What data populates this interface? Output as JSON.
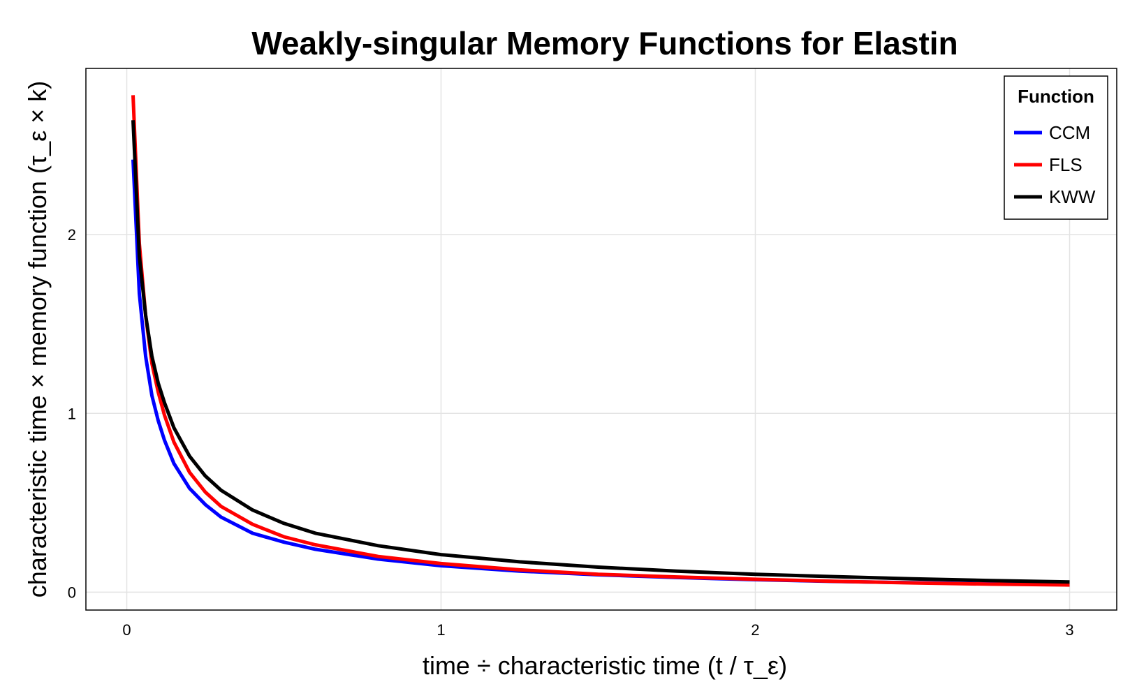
{
  "chart_data": {
    "type": "line",
    "title": "Weakly-singular Memory Functions for Elastin",
    "xlabel": "time ÷ characteristic time  (t / τ_ε)",
    "ylabel": "characteristic time × memory function  (τ_ε × k)",
    "xlim": [
      -0.13,
      3.15
    ],
    "ylim": [
      -0.1,
      2.93
    ],
    "xticks": [
      0,
      1,
      2,
      3
    ],
    "xtick_labels": [
      "0",
      "1",
      "2",
      "3"
    ],
    "yticks": [
      0,
      1,
      2
    ],
    "ytick_labels": [
      "0",
      "1",
      "2"
    ],
    "grid": true,
    "legend": {
      "title": "Function",
      "position": "top-right"
    },
    "series": [
      {
        "name": "CCM",
        "color": "#0000ff",
        "x": [
          0.02,
          0.04,
          0.06,
          0.08,
          0.1,
          0.12,
          0.15,
          0.2,
          0.25,
          0.3,
          0.4,
          0.5,
          0.6,
          0.8,
          1.0,
          1.25,
          1.5,
          1.75,
          2.0,
          2.25,
          2.5,
          2.75,
          3.0
        ],
        "y": [
          2.42,
          1.67,
          1.32,
          1.1,
          0.96,
          0.85,
          0.72,
          0.58,
          0.49,
          0.42,
          0.33,
          0.28,
          0.24,
          0.185,
          0.148,
          0.118,
          0.097,
          0.082,
          0.07,
          0.06,
          0.053,
          0.047,
          0.042
        ]
      },
      {
        "name": "FLS",
        "color": "#ff0000",
        "x": [
          0.02,
          0.04,
          0.06,
          0.08,
          0.1,
          0.12,
          0.15,
          0.2,
          0.25,
          0.3,
          0.4,
          0.5,
          0.6,
          0.8,
          1.0,
          1.25,
          1.5,
          1.75,
          2.0,
          2.25,
          2.5,
          2.75,
          3.0
        ],
        "y": [
          2.78,
          1.95,
          1.55,
          1.28,
          1.12,
          0.99,
          0.84,
          0.67,
          0.56,
          0.48,
          0.38,
          0.31,
          0.265,
          0.2,
          0.16,
          0.125,
          0.1,
          0.085,
          0.072,
          0.061,
          0.052,
          0.045,
          0.04
        ]
      },
      {
        "name": "KWW",
        "color": "#000000",
        "x": [
          0.02,
          0.04,
          0.06,
          0.08,
          0.1,
          0.12,
          0.15,
          0.2,
          0.25,
          0.3,
          0.4,
          0.5,
          0.6,
          0.8,
          1.0,
          1.25,
          1.5,
          1.75,
          2.0,
          2.25,
          2.5,
          2.75,
          3.0
        ],
        "y": [
          2.64,
          1.88,
          1.55,
          1.32,
          1.17,
          1.06,
          0.92,
          0.76,
          0.65,
          0.57,
          0.46,
          0.385,
          0.33,
          0.26,
          0.21,
          0.17,
          0.14,
          0.118,
          0.1,
          0.087,
          0.075,
          0.065,
          0.057
        ]
      }
    ]
  }
}
